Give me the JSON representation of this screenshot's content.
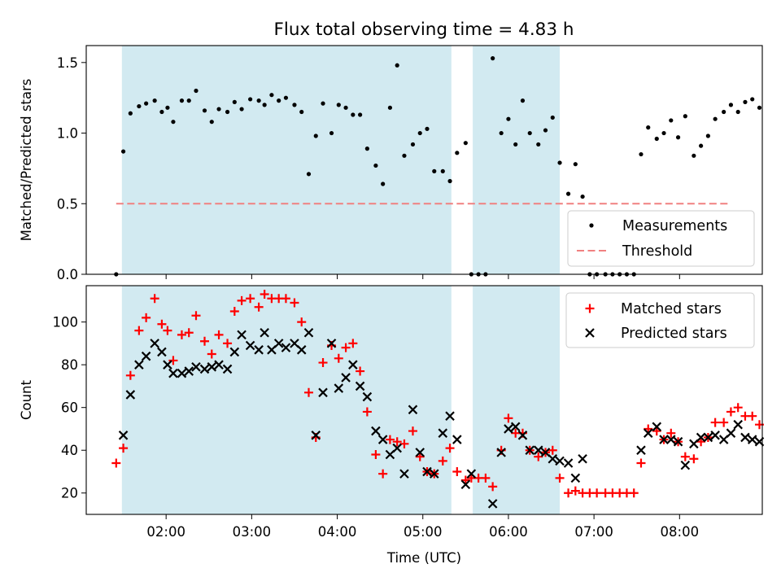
{
  "title": "Flux total observing time = 4.83 h",
  "colors": {
    "shade": "#add8e6",
    "measurement": "#000000",
    "threshold": "#f08080",
    "matched": "#ff0000",
    "predicted": "#000000"
  },
  "chart_data": [
    {
      "type": "scatter",
      "panel": "top",
      "xlabel": "",
      "ylabel": "Matched/Predicted stars",
      "xlim": [
        "01:04",
        "08:58"
      ],
      "ylim": [
        0,
        1.62
      ],
      "yticks": [
        0.0,
        0.5,
        1.0,
        1.5
      ],
      "ytick_labels": [
        "0.0",
        "0.5",
        "1.0",
        "1.5"
      ],
      "shaded_intervals": [
        [
          "01:29",
          "05:20"
        ],
        [
          "05:35",
          "06:36"
        ]
      ],
      "legend": {
        "position": "lower right",
        "entries": [
          "Measurements",
          "Threshold"
        ]
      },
      "threshold": {
        "name": "Threshold",
        "value": 0.5,
        "x": [
          "01:25",
          "08:35"
        ]
      },
      "series": [
        {
          "name": "Measurements",
          "points": [
            [
              "01:25",
              0.0
            ],
            [
              "01:30",
              0.87
            ],
            [
              "01:35",
              1.14
            ],
            [
              "01:41",
              1.19
            ],
            [
              "01:46",
              1.21
            ],
            [
              "01:52",
              1.23
            ],
            [
              "01:57",
              1.15
            ],
            [
              "02:01",
              1.18
            ],
            [
              "02:05",
              1.08
            ],
            [
              "02:11",
              1.23
            ],
            [
              "02:16",
              1.23
            ],
            [
              "02:21",
              1.3
            ],
            [
              "02:27",
              1.16
            ],
            [
              "02:32",
              1.08
            ],
            [
              "02:37",
              1.17
            ],
            [
              "02:43",
              1.15
            ],
            [
              "02:48",
              1.22
            ],
            [
              "02:53",
              1.17
            ],
            [
              "02:59",
              1.24
            ],
            [
              "03:05",
              1.23
            ],
            [
              "03:09",
              1.2
            ],
            [
              "03:14",
              1.27
            ],
            [
              "03:19",
              1.23
            ],
            [
              "03:24",
              1.25
            ],
            [
              "03:30",
              1.2
            ],
            [
              "03:35",
              1.15
            ],
            [
              "03:40",
              0.71
            ],
            [
              "03:45",
              0.98
            ],
            [
              "03:50",
              1.21
            ],
            [
              "03:56",
              1.0
            ],
            [
              "04:01",
              1.2
            ],
            [
              "04:06",
              1.18
            ],
            [
              "04:11",
              1.13
            ],
            [
              "04:16",
              1.13
            ],
            [
              "04:21",
              0.89
            ],
            [
              "04:27",
              0.77
            ],
            [
              "04:32",
              0.64
            ],
            [
              "04:37",
              1.18
            ],
            [
              "04:42",
              1.48
            ],
            [
              "04:47",
              0.84
            ],
            [
              "04:53",
              0.92
            ],
            [
              "04:58",
              1.0
            ],
            [
              "05:03",
              1.03
            ],
            [
              "05:08",
              0.73
            ],
            [
              "05:14",
              0.73
            ],
            [
              "05:19",
              0.66
            ],
            [
              "05:24",
              0.86
            ],
            [
              "05:30",
              0.93
            ],
            [
              "05:34",
              0.0
            ],
            [
              "05:39",
              0.0
            ],
            [
              "05:44",
              0.0
            ],
            [
              "05:49",
              1.53
            ],
            [
              "05:55",
              1.0
            ],
            [
              "06:00",
              1.1
            ],
            [
              "06:05",
              0.92
            ],
            [
              "06:10",
              1.23
            ],
            [
              "06:15",
              1.0
            ],
            [
              "06:21",
              0.92
            ],
            [
              "06:26",
              1.02
            ],
            [
              "06:31",
              1.11
            ],
            [
              "06:36",
              0.79
            ],
            [
              "06:42",
              0.57
            ],
            [
              "06:47",
              0.78
            ],
            [
              "06:52",
              0.55
            ],
            [
              "06:57",
              0.0
            ],
            [
              "07:02",
              0.0
            ],
            [
              "07:08",
              0.0
            ],
            [
              "07:13",
              0.0
            ],
            [
              "07:18",
              0.0
            ],
            [
              "07:23",
              0.0
            ],
            [
              "07:28",
              0.0
            ],
            [
              "07:33",
              0.85
            ],
            [
              "07:38",
              1.04
            ],
            [
              "07:44",
              0.96
            ],
            [
              "07:49",
              1.0
            ],
            [
              "07:54",
              1.09
            ],
            [
              "07:59",
              0.97
            ],
            [
              "08:04",
              1.12
            ],
            [
              "08:10",
              0.84
            ],
            [
              "08:15",
              0.91
            ],
            [
              "08:20",
              0.98
            ],
            [
              "08:25",
              1.1
            ],
            [
              "08:31",
              1.15
            ],
            [
              "08:36",
              1.2
            ],
            [
              "08:41",
              1.15
            ],
            [
              "08:46",
              1.22
            ],
            [
              "08:51",
              1.24
            ],
            [
              "08:56",
              1.18
            ]
          ]
        }
      ]
    },
    {
      "type": "scatter",
      "panel": "bottom",
      "xlabel": "Time (UTC)",
      "ylabel": "Count",
      "xlim": [
        "01:04",
        "08:58"
      ],
      "ylim": [
        10,
        117
      ],
      "yticks": [
        20,
        40,
        60,
        80,
        100
      ],
      "xticks": [
        "02:00",
        "03:00",
        "04:00",
        "05:00",
        "06:00",
        "07:00",
        "08:00"
      ],
      "shaded_intervals": [
        [
          "01:29",
          "05:20"
        ],
        [
          "05:35",
          "06:36"
        ]
      ],
      "legend": {
        "position": "upper right",
        "entries": [
          "Matched stars",
          "Predicted stars"
        ]
      },
      "series": [
        {
          "name": "Matched stars",
          "marker": "+",
          "points": [
            [
              "01:25",
              34
            ],
            [
              "01:30",
              41
            ],
            [
              "01:35",
              75
            ],
            [
              "01:41",
              96
            ],
            [
              "01:46",
              102
            ],
            [
              "01:52",
              111
            ],
            [
              "01:57",
              99
            ],
            [
              "02:01",
              96
            ],
            [
              "02:05",
              82
            ],
            [
              "02:11",
              94
            ],
            [
              "02:16",
              95
            ],
            [
              "02:21",
              103
            ],
            [
              "02:27",
              91
            ],
            [
              "02:32",
              85
            ],
            [
              "02:37",
              94
            ],
            [
              "02:43",
              90
            ],
            [
              "02:48",
              105
            ],
            [
              "02:53",
              110
            ],
            [
              "02:59",
              111
            ],
            [
              "03:05",
              107
            ],
            [
              "03:09",
              113
            ],
            [
              "03:14",
              111
            ],
            [
              "03:19",
              111
            ],
            [
              "03:24",
              111
            ],
            [
              "03:30",
              109
            ],
            [
              "03:35",
              100
            ],
            [
              "03:40",
              67
            ],
            [
              "03:45",
              46
            ],
            [
              "03:50",
              81
            ],
            [
              "03:56",
              89
            ],
            [
              "04:01",
              83
            ],
            [
              "04:06",
              88
            ],
            [
              "04:11",
              90
            ],
            [
              "04:16",
              77
            ],
            [
              "04:21",
              58
            ],
            [
              "04:27",
              38
            ],
            [
              "04:32",
              29
            ],
            [
              "04:37",
              45
            ],
            [
              "04:42",
              44
            ],
            [
              "04:47",
              43
            ],
            [
              "04:53",
              49
            ],
            [
              "04:58",
              37
            ],
            [
              "05:03",
              30
            ],
            [
              "05:08",
              29
            ],
            [
              "05:14",
              35
            ],
            [
              "05:19",
              41
            ],
            [
              "05:24",
              30
            ],
            [
              "05:30",
              26
            ],
            [
              "05:34",
              27
            ],
            [
              "05:39",
              27
            ],
            [
              "05:44",
              27
            ],
            [
              "05:49",
              23
            ],
            [
              "05:55",
              40
            ],
            [
              "06:00",
              55
            ],
            [
              "06:05",
              48
            ],
            [
              "06:10",
              48
            ],
            [
              "06:15",
              40
            ],
            [
              "06:21",
              37
            ],
            [
              "06:26",
              39
            ],
            [
              "06:31",
              40
            ],
            [
              "06:36",
              27
            ],
            [
              "06:42",
              20
            ],
            [
              "06:47",
              21
            ],
            [
              "06:52",
              20
            ],
            [
              "06:57",
              20
            ],
            [
              "07:02",
              20
            ],
            [
              "07:08",
              20
            ],
            [
              "07:13",
              20
            ],
            [
              "07:18",
              20
            ],
            [
              "07:23",
              20
            ],
            [
              "07:28",
              20
            ],
            [
              "07:33",
              34
            ],
            [
              "07:38",
              50
            ],
            [
              "07:44",
              49
            ],
            [
              "07:49",
              45
            ],
            [
              "07:54",
              48
            ],
            [
              "07:59",
              44
            ],
            [
              "08:04",
              37
            ],
            [
              "08:10",
              36
            ],
            [
              "08:15",
              44
            ],
            [
              "08:20",
              46
            ],
            [
              "08:25",
              53
            ],
            [
              "08:31",
              53
            ],
            [
              "08:36",
              58
            ],
            [
              "08:41",
              60
            ],
            [
              "08:46",
              56
            ],
            [
              "08:51",
              56
            ],
            [
              "08:56",
              52
            ]
          ]
        },
        {
          "name": "Predicted stars",
          "marker": "x",
          "points": [
            [
              "01:30",
              47
            ],
            [
              "01:35",
              66
            ],
            [
              "01:41",
              80
            ],
            [
              "01:46",
              84
            ],
            [
              "01:52",
              90
            ],
            [
              "01:57",
              86
            ],
            [
              "02:01",
              80
            ],
            [
              "02:05",
              76
            ],
            [
              "02:11",
              76
            ],
            [
              "02:16",
              77
            ],
            [
              "02:21",
              79
            ],
            [
              "02:27",
              78
            ],
            [
              "02:32",
              79
            ],
            [
              "02:37",
              80
            ],
            [
              "02:43",
              78
            ],
            [
              "02:48",
              86
            ],
            [
              "02:53",
              94
            ],
            [
              "02:59",
              89
            ],
            [
              "03:05",
              87
            ],
            [
              "03:09",
              95
            ],
            [
              "03:14",
              87
            ],
            [
              "03:19",
              90
            ],
            [
              "03:24",
              88
            ],
            [
              "03:30",
              90
            ],
            [
              "03:35",
              87
            ],
            [
              "03:40",
              95
            ],
            [
              "03:45",
              47
            ],
            [
              "03:50",
              67
            ],
            [
              "03:56",
              90
            ],
            [
              "04:01",
              69
            ],
            [
              "04:06",
              74
            ],
            [
              "04:11",
              80
            ],
            [
              "04:16",
              70
            ],
            [
              "04:21",
              65
            ],
            [
              "04:27",
              49
            ],
            [
              "04:32",
              45
            ],
            [
              "04:37",
              38
            ],
            [
              "04:42",
              41
            ],
            [
              "04:47",
              29
            ],
            [
              "04:53",
              59
            ],
            [
              "04:58",
              39
            ],
            [
              "05:03",
              30
            ],
            [
              "05:08",
              29
            ],
            [
              "05:14",
              48
            ],
            [
              "05:19",
              56
            ],
            [
              "05:24",
              45
            ],
            [
              "05:30",
              24
            ],
            [
              "05:34",
              29
            ],
            [
              "05:49",
              15
            ],
            [
              "05:55",
              39
            ],
            [
              "06:00",
              50
            ],
            [
              "06:05",
              51
            ],
            [
              "06:10",
              47
            ],
            [
              "06:15",
              40
            ],
            [
              "06:21",
              40
            ],
            [
              "06:26",
              39
            ],
            [
              "06:31",
              36
            ],
            [
              "06:36",
              35
            ],
            [
              "06:42",
              34
            ],
            [
              "06:47",
              27
            ],
            [
              "06:52",
              36
            ],
            [
              "07:33",
              40
            ],
            [
              "07:38",
              48
            ],
            [
              "07:44",
              51
            ],
            [
              "07:49",
              45
            ],
            [
              "07:54",
              45
            ],
            [
              "07:59",
              44
            ],
            [
              "08:04",
              33
            ],
            [
              "08:10",
              43
            ],
            [
              "08:15",
              46
            ],
            [
              "08:20",
              46
            ],
            [
              "08:25",
              47
            ],
            [
              "08:31",
              45
            ],
            [
              "08:36",
              48
            ],
            [
              "08:41",
              52
            ],
            [
              "08:46",
              46
            ],
            [
              "08:51",
              45
            ],
            [
              "08:56",
              44
            ]
          ]
        }
      ]
    }
  ]
}
